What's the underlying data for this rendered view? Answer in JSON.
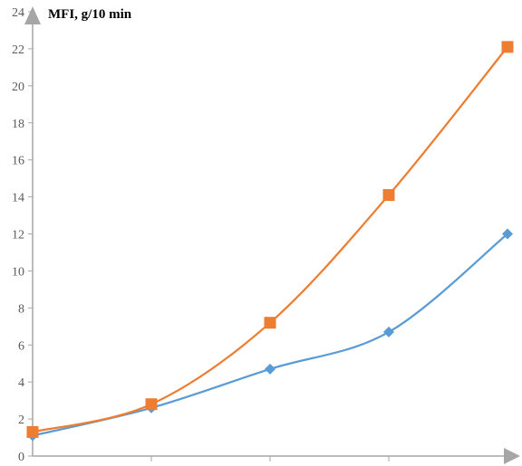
{
  "chart_data": {
    "type": "line",
    "title": "",
    "xlabel": "",
    "ylabel": "MFI, g/10 min",
    "ylim": [
      0,
      24
    ],
    "y_ticks": [
      "0",
      "2",
      "4",
      "6",
      "8",
      "10",
      "12",
      "14",
      "16",
      "18",
      "20",
      "22",
      "24"
    ],
    "x": [
      1,
      2,
      3,
      4,
      5
    ],
    "x_tick_labels_shown": false,
    "grid": false,
    "legend": "none",
    "smooth": true,
    "series": [
      {
        "color": "#5b9bd5",
        "marker": "diamond",
        "values": [
          1.1,
          2.6,
          4.7,
          6.7,
          12.0
        ]
      },
      {
        "color": "#ed7d31",
        "marker": "square",
        "values": [
          1.3,
          2.8,
          7.2,
          14.1,
          22.1
        ]
      }
    ],
    "axis_color": "#a6a6a6"
  }
}
